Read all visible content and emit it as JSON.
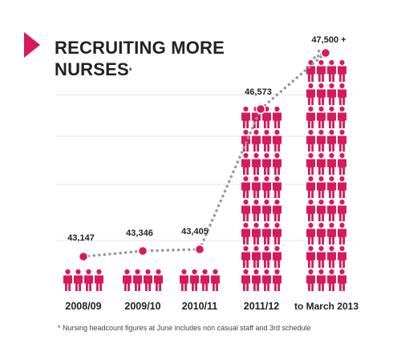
{
  "title_line1": "RECRUITING MORE",
  "title_line2": "NURSES",
  "title_mark": "*",
  "footnote": "* Nursing headcount figures at June includes non casual staff and 3rd schedule",
  "colors": {
    "accent": "#d8195a",
    "dots": "#999999",
    "text": "#222222",
    "grid": "#e6e6e6"
  },
  "chart_data": {
    "type": "bar",
    "style": "pictogram with dotted trend line",
    "categories": [
      "2008/09",
      "2009/10",
      "2010/11",
      "2011/12",
      "to March 2013"
    ],
    "values": [
      43147,
      43346,
      43405,
      46573,
      47500
    ],
    "value_labels": [
      "43,147",
      "43,346",
      "43,405",
      "46,573",
      "47,500 +"
    ],
    "title": "RECRUITING MORE NURSES*",
    "xlabel": "",
    "ylabel": "",
    "grid": true,
    "legend": "none"
  }
}
